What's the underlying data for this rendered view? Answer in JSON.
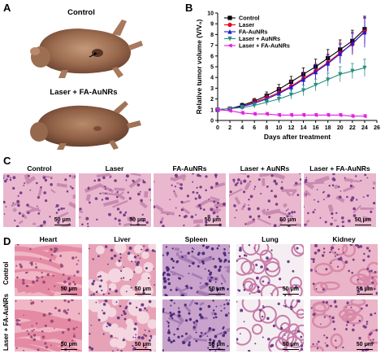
{
  "panels": {
    "A": {
      "letter": "A",
      "labels": [
        "Control",
        "Laser + FA-AuNRs"
      ]
    },
    "B": {
      "letter": "B"
    },
    "C": {
      "letter": "C",
      "columns": [
        "Control",
        "Laser",
        "FA-AuNRs",
        "Laser + AuNRs",
        "Laser + FA-AuNRs"
      ],
      "scale": "50 μm"
    },
    "D": {
      "letter": "D",
      "columns": [
        "Heart",
        "Liver",
        "Spleen",
        "Lung",
        "Kidney"
      ],
      "rows": [
        "Control",
        "Laser + FA-AuNRs"
      ],
      "scale": "50 μm"
    }
  },
  "chart_data": {
    "type": "line",
    "xlabel": "Days after treatment",
    "ylabel": "Relative tumor volume (V/V₀)",
    "xlim": [
      0,
      26
    ],
    "ylim": [
      0,
      10
    ],
    "xticks": [
      0,
      2,
      4,
      6,
      8,
      10,
      12,
      14,
      16,
      18,
      20,
      22,
      24,
      26
    ],
    "yticks": [
      0,
      1,
      2,
      3,
      4,
      5,
      6,
      7,
      8,
      9,
      10
    ],
    "legend_position": "top-left",
    "x": [
      0,
      2,
      4,
      6,
      8,
      10,
      12,
      14,
      16,
      18,
      20,
      22,
      24
    ],
    "series": [
      {
        "name": "Control",
        "color": "#000000",
        "marker": "square",
        "values": [
          1.0,
          1.1,
          1.4,
          1.8,
          2.3,
          2.9,
          3.6,
          4.3,
          5.0,
          5.8,
          6.6,
          7.4,
          8.5
        ],
        "errors": [
          0.1,
          0.15,
          0.2,
          0.25,
          0.35,
          0.45,
          0.5,
          0.6,
          0.7,
          0.8,
          0.9,
          1.0,
          1.2
        ]
      },
      {
        "name": "Laser",
        "color": "#e8001c",
        "marker": "circle",
        "values": [
          1.0,
          1.1,
          1.3,
          1.7,
          2.1,
          2.6,
          3.2,
          3.9,
          4.6,
          5.4,
          6.3,
          7.1,
          8.3
        ],
        "errors": [
          0.1,
          0.15,
          0.2,
          0.25,
          0.3,
          0.4,
          0.5,
          0.6,
          0.7,
          0.8,
          0.9,
          1.0,
          1.2
        ]
      },
      {
        "name": "FA-AuNRs",
        "color": "#1a1adc",
        "marker": "triangle-up",
        "values": [
          1.0,
          1.1,
          1.3,
          1.6,
          2.0,
          2.5,
          3.1,
          3.8,
          4.5,
          5.3,
          6.2,
          7.2,
          8.2
        ],
        "errors": [
          0.1,
          0.15,
          0.2,
          0.25,
          0.3,
          0.4,
          0.5,
          0.6,
          0.7,
          0.8,
          0.9,
          1.0,
          1.4
        ]
      },
      {
        "name": "Laser + AuNRs",
        "color": "#2a8f80",
        "marker": "triangle-down",
        "values": [
          1.0,
          1.1,
          1.2,
          1.4,
          1.7,
          2.0,
          2.4,
          2.8,
          3.3,
          3.8,
          4.3,
          4.6,
          4.9
        ],
        "errors": [
          0.1,
          0.15,
          0.2,
          0.25,
          0.3,
          0.35,
          0.4,
          0.5,
          0.55,
          0.6,
          0.7,
          0.7,
          0.8
        ]
      },
      {
        "name": "Laser + FA-AuNRs",
        "color": "#e020e0",
        "marker": "triangle-left",
        "values": [
          1.0,
          0.9,
          0.7,
          0.6,
          0.6,
          0.5,
          0.5,
          0.5,
          0.5,
          0.5,
          0.5,
          0.4,
          0.4
        ],
        "errors": [
          0.1,
          0.15,
          0.15,
          0.15,
          0.15,
          0.15,
          0.15,
          0.15,
          0.15,
          0.15,
          0.15,
          0.15,
          0.15
        ]
      }
    ]
  }
}
